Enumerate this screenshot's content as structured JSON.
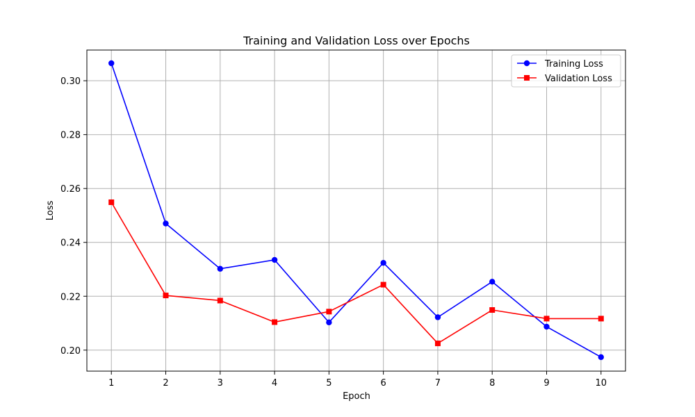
{
  "chart_data": {
    "type": "line",
    "title": "Training and Validation Loss over Epochs",
    "xlabel": "Epoch",
    "ylabel": "Loss",
    "x": [
      1,
      2,
      3,
      4,
      5,
      6,
      7,
      8,
      9,
      10
    ],
    "xlim": [
      0.55,
      10.45
    ],
    "ylim": [
      0.1922,
      0.3114
    ],
    "xticks": [
      1,
      2,
      3,
      4,
      5,
      6,
      7,
      8,
      9,
      10
    ],
    "yticks": [
      0.2,
      0.22,
      0.24,
      0.26,
      0.28,
      0.3
    ],
    "ytick_labels": [
      "0.20",
      "0.22",
      "0.24",
      "0.26",
      "0.28",
      "0.30"
    ],
    "grid": true,
    "legend_position": "top-right",
    "series": [
      {
        "name": "Training Loss",
        "color": "#0000ff",
        "marker": "circle",
        "values": [
          0.3065,
          0.247,
          0.2302,
          0.2335,
          0.2103,
          0.2324,
          0.2122,
          0.2254,
          0.2087,
          0.1974
        ]
      },
      {
        "name": "Validation Loss",
        "color": "#ff0000",
        "marker": "square",
        "values": [
          0.2549,
          0.2203,
          0.2184,
          0.2104,
          0.2143,
          0.2243,
          0.2025,
          0.2149,
          0.2117,
          0.2117
        ]
      }
    ]
  }
}
